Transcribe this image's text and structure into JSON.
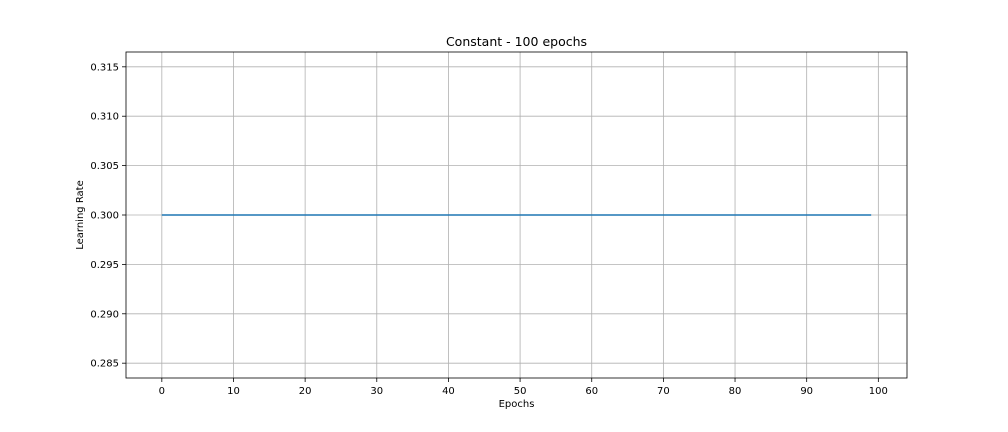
{
  "chart_data": {
    "type": "line",
    "title": "Constant - 100 epochs",
    "xlabel": "Epochs",
    "ylabel": "Learning Rate",
    "xlim": [
      -5,
      104
    ],
    "ylim": [
      0.2835,
      0.3165
    ],
    "xticks": [
      0,
      10,
      20,
      30,
      40,
      50,
      60,
      70,
      80,
      90,
      100
    ],
    "yticks": [
      0.285,
      0.29,
      0.295,
      0.3,
      0.305,
      0.31,
      0.315
    ],
    "ytick_labels": [
      "0.285",
      "0.290",
      "0.295",
      "0.300",
      "0.305",
      "0.310",
      "0.315"
    ],
    "grid": true,
    "series": [
      {
        "x_start": 0,
        "x_end": 99,
        "value": 0.3,
        "color": "#1f77b4"
      }
    ]
  }
}
